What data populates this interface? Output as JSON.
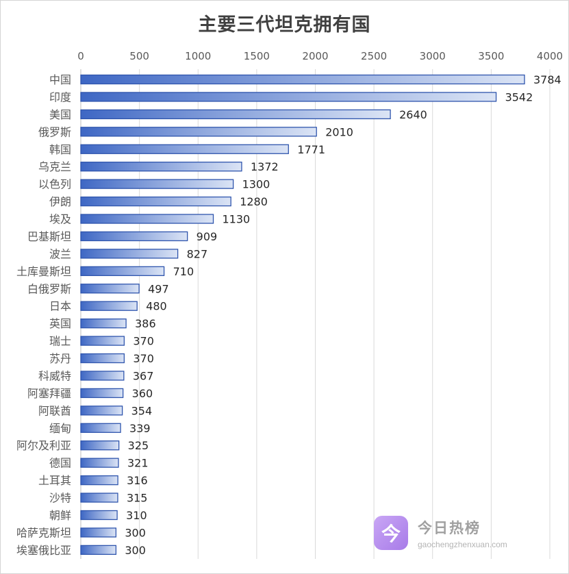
{
  "chart_data": {
    "type": "bar",
    "orientation": "horizontal",
    "title": "主要三代坦克拥有国",
    "xlim": [
      0,
      4000
    ],
    "x_ticks": [
      0,
      500,
      1000,
      1500,
      2000,
      2500,
      3000,
      3500,
      4000
    ],
    "x_axis_position": "top",
    "grid": true,
    "legend": "none",
    "categories": [
      "中国",
      "印度",
      "美国",
      "俄罗斯",
      "韩国",
      "乌克兰",
      "以色列",
      "伊朗",
      "埃及",
      "巴基斯坦",
      "波兰",
      "土库曼斯坦",
      "白俄罗斯",
      "日本",
      "英国",
      "瑞士",
      "苏丹",
      "科威特",
      "阿塞拜疆",
      "阿联酋",
      "缅甸",
      "阿尔及利亚",
      "德国",
      "土耳其",
      "沙特",
      "朝鲜",
      "哈萨克斯坦",
      "埃塞俄比亚"
    ],
    "values": [
      3784,
      3542,
      2640,
      2010,
      1771,
      1372,
      1300,
      1280,
      1130,
      909,
      827,
      710,
      497,
      480,
      386,
      370,
      370,
      367,
      360,
      354,
      339,
      325,
      321,
      316,
      315,
      310,
      300,
      300
    ],
    "colors": {
      "bar_start": "#3e67c4",
      "bar_end": "#dbe4f5",
      "bar_border": "#2f55ad",
      "grid": "#d9d9d9"
    }
  },
  "watermark": {
    "logo_glyph": "今",
    "name": "今日热榜",
    "url": "gaochengzhenxuan.com"
  }
}
